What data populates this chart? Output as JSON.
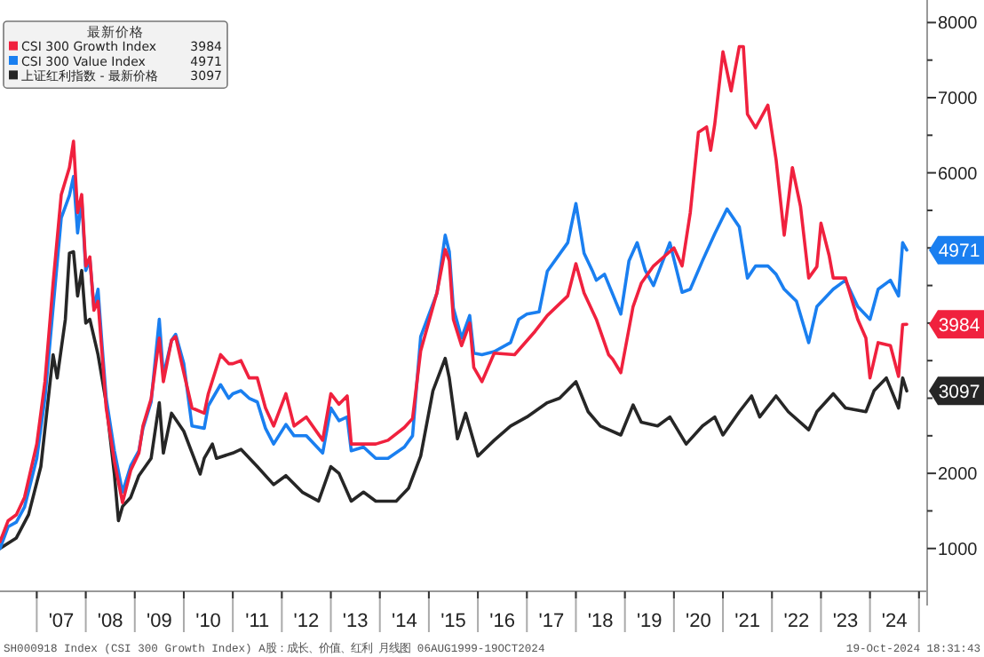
{
  "chart_data": {
    "type": "line",
    "legend_title": "最新价格",
    "legend": "top left",
    "xlim": [
      "2006-04",
      "2025-03"
    ],
    "ylim": [
      430,
      8300
    ],
    "xticks": [
      {
        "value": "2007-01",
        "label": null
      },
      {
        "value": "2007-07",
        "label": "'07"
      },
      {
        "value": "2008-01",
        "label": null
      },
      {
        "value": "2008-07",
        "label": "'08"
      },
      {
        "value": "2009-01",
        "label": null
      },
      {
        "value": "2009-07",
        "label": "'09"
      },
      {
        "value": "2010-01",
        "label": null
      },
      {
        "value": "2010-07",
        "label": "'10"
      },
      {
        "value": "2011-01",
        "label": null
      },
      {
        "value": "2011-07",
        "label": "'11"
      },
      {
        "value": "2012-01",
        "label": null
      },
      {
        "value": "2012-07",
        "label": "'12"
      },
      {
        "value": "2013-01",
        "label": null
      },
      {
        "value": "2013-07",
        "label": "'13"
      },
      {
        "value": "2014-01",
        "label": null
      },
      {
        "value": "2014-07",
        "label": "'14"
      },
      {
        "value": "2015-01",
        "label": null
      },
      {
        "value": "2015-07",
        "label": "'15"
      },
      {
        "value": "2016-01",
        "label": null
      },
      {
        "value": "2016-07",
        "label": "'16"
      },
      {
        "value": "2017-01",
        "label": null
      },
      {
        "value": "2017-07",
        "label": "'17"
      },
      {
        "value": "2018-01",
        "label": null
      },
      {
        "value": "2018-07",
        "label": "'18"
      },
      {
        "value": "2019-01",
        "label": null
      },
      {
        "value": "2019-07",
        "label": "'19"
      },
      {
        "value": "2020-01",
        "label": null
      },
      {
        "value": "2020-07",
        "label": "'20"
      },
      {
        "value": "2021-01",
        "label": null
      },
      {
        "value": "2021-07",
        "label": "'21"
      },
      {
        "value": "2022-01",
        "label": null
      },
      {
        "value": "2022-07",
        "label": "'22"
      },
      {
        "value": "2023-01",
        "label": null
      },
      {
        "value": "2023-07",
        "label": "'23"
      },
      {
        "value": "2024-01",
        "label": null
      },
      {
        "value": "2024-07",
        "label": "'24"
      },
      {
        "value": "2025-01",
        "label": null
      }
    ],
    "yticks": [
      1000,
      {
        "value": 1500,
        "label": null
      },
      2000,
      {
        "value": 2500,
        "label": null
      },
      {
        "value": 3000,
        "label": null
      },
      {
        "value": 3500,
        "label": null
      },
      {
        "value": 4000,
        "label": null
      },
      {
        "value": 4500,
        "label": null
      },
      {
        "value": 5000,
        "label": null
      },
      {
        "value": 5500,
        "label": null
      },
      6000,
      {
        "value": 6500,
        "label": null
      },
      7000,
      {
        "value": 7500,
        "label": null
      },
      8000
    ],
    "annotations": [
      "SH000918 Index (CSI 300 Growth Index) A股：成长、价值、红利   月线图 06AUG1999-19OCT2024",
      "19-Oct-2024 18:31:43"
    ],
    "series": [
      {
        "name": "CSI 300 Growth Index",
        "color": "#f0213e",
        "x": [
          "2006-04",
          "2006-06",
          "2006-08",
          "2006-10",
          "2007-01",
          "2007-03",
          "2007-05",
          "2007-07",
          "2007-09",
          "2007-10",
          "2007-11",
          "2007-12",
          "2008-01",
          "2008-02",
          "2008-03",
          "2008-04",
          "2008-05",
          "2008-06",
          "2008-08",
          "2008-10",
          "2008-12",
          "2009-02",
          "2009-03",
          "2009-05",
          "2009-07",
          "2009-08",
          "2009-10",
          "2009-11",
          "2010-01",
          "2010-03",
          "2010-06",
          "2010-07",
          "2010-10",
          "2010-12",
          "2011-01",
          "2011-03",
          "2011-05",
          "2011-07",
          "2011-09",
          "2011-11",
          "2012-02",
          "2012-04",
          "2012-07",
          "2012-11",
          "2013-01",
          "2013-03",
          "2013-05",
          "2013-06",
          "2013-09",
          "2013-12",
          "2014-03",
          "2014-07",
          "2014-09",
          "2014-11",
          "2015-03",
          "2015-05",
          "2015-06",
          "2015-07",
          "2015-09",
          "2015-11",
          "2015-12",
          "2016-02",
          "2016-05",
          "2016-10",
          "2017-03",
          "2017-06",
          "2017-11",
          "2018-01",
          "2018-03",
          "2018-06",
          "2018-09",
          "2018-10",
          "2018-12",
          "2019-03",
          "2019-05",
          "2019-08",
          "2020-01",
          "2020-03",
          "2020-05",
          "2020-07",
          "2020-09",
          "2020-10",
          "2020-11",
          "2021-01",
          "2021-03",
          "2021-05",
          "2021-06",
          "2021-07",
          "2021-09",
          "2021-12",
          "2022-02",
          "2022-04",
          "2022-06",
          "2022-08",
          "2022-10",
          "2022-12",
          "2023-01",
          "2023-03",
          "2023-04",
          "2023-07",
          "2023-10",
          "2023-12",
          "2024-01",
          "2024-03",
          "2024-06",
          "2024-08",
          "2024-09",
          "2024-10"
        ],
        "values": [
          1090,
          1370,
          1450,
          1680,
          2390,
          3220,
          4530,
          5710,
          6070,
          6420,
          5470,
          5710,
          4760,
          4880,
          4170,
          4290,
          3580,
          2870,
          2160,
          1610,
          2040,
          2270,
          2630,
          2990,
          3800,
          3220,
          3770,
          3820,
          3340,
          2870,
          2800,
          3060,
          3580,
          3460,
          3460,
          3500,
          3270,
          3270,
          2870,
          2630,
          3060,
          2630,
          2750,
          2440,
          3060,
          2920,
          3030,
          2390,
          2390,
          2390,
          2440,
          2610,
          2730,
          3630,
          4410,
          4980,
          4830,
          4050,
          3700,
          4000,
          3410,
          3220,
          3600,
          3580,
          3890,
          4100,
          4360,
          4790,
          4400,
          4050,
          3580,
          3520,
          3340,
          4220,
          4530,
          4760,
          5000,
          4760,
          5470,
          6540,
          6610,
          6300,
          6650,
          7610,
          7090,
          7680,
          7680,
          6780,
          6600,
          6900,
          6180,
          5170,
          6070,
          5550,
          4600,
          4750,
          5330,
          4900,
          4600,
          4600,
          4050,
          3800,
          3270,
          3740,
          3700,
          3290,
          3980,
          3984
        ],
        "value_labels": [
          null,
          null,
          null,
          null,
          null,
          null,
          null,
          null,
          null,
          null,
          null,
          null,
          null,
          null,
          null,
          null,
          null,
          null,
          null,
          null,
          null,
          null,
          null,
          null,
          null,
          null,
          null,
          null,
          null,
          null,
          null,
          null,
          null,
          null,
          null,
          null,
          null,
          null,
          null,
          null,
          null,
          null,
          null,
          null,
          null,
          null,
          null,
          null,
          null,
          null,
          null,
          null,
          null,
          null,
          null,
          null,
          null,
          null,
          null,
          null,
          null,
          null,
          null,
          null,
          null,
          null,
          null,
          null,
          null,
          null,
          null,
          null,
          null,
          null,
          null,
          null,
          null,
          null,
          null,
          null,
          null,
          null,
          null,
          null,
          null,
          null,
          null,
          null,
          null,
          null,
          null,
          null,
          null,
          null,
          null,
          null,
          null,
          null,
          null,
          null,
          null,
          null,
          null,
          null,
          null,
          null,
          null,
          "3984"
        ]
      },
      {
        "name": "CSI 300 Value Index",
        "color": "#1a7ff0",
        "x": [
          "2006-04",
          "2006-06",
          "2006-08",
          "2006-10",
          "2007-01",
          "2007-03",
          "2007-05",
          "2007-07",
          "2007-09",
          "2007-10",
          "2007-11",
          "2007-12",
          "2008-01",
          "2008-02",
          "2008-03",
          "2008-04",
          "2008-05",
          "2008-06",
          "2008-08",
          "2008-10",
          "2008-12",
          "2009-02",
          "2009-03",
          "2009-05",
          "2009-07",
          "2009-08",
          "2009-10",
          "2009-11",
          "2010-01",
          "2010-03",
          "2010-06",
          "2010-07",
          "2010-10",
          "2010-12",
          "2011-01",
          "2011-03",
          "2011-05",
          "2011-07",
          "2011-09",
          "2011-11",
          "2012-02",
          "2012-04",
          "2012-07",
          "2012-11",
          "2013-01",
          "2013-03",
          "2013-05",
          "2013-06",
          "2013-09",
          "2013-12",
          "2014-03",
          "2014-07",
          "2014-09",
          "2014-11",
          "2015-03",
          "2015-05",
          "2015-06",
          "2015-07",
          "2015-09",
          "2015-11",
          "2015-12",
          "2016-02",
          "2016-05",
          "2016-09",
          "2016-11",
          "2017-01",
          "2017-04",
          "2017-06",
          "2017-11",
          "2018-01",
          "2018-03",
          "2018-05",
          "2018-06",
          "2018-08",
          "2018-12",
          "2019-02",
          "2019-04",
          "2019-06",
          "2019-08",
          "2019-12",
          "2020-03",
          "2020-05",
          "2020-08",
          "2020-11",
          "2021-02",
          "2021-05",
          "2021-07",
          "2021-09",
          "2021-12",
          "2022-02",
          "2022-04",
          "2022-07",
          "2022-10",
          "2022-12",
          "2023-04",
          "2023-07",
          "2023-10",
          "2024-01",
          "2024-03",
          "2024-06",
          "2024-08",
          "2024-09",
          "2024-10"
        ],
        "values": [
          1000,
          1290,
          1350,
          1550,
          2200,
          3000,
          4200,
          5400,
          5700,
          5950,
          5200,
          5650,
          4700,
          4850,
          4200,
          4450,
          3700,
          3000,
          2300,
          1750,
          2100,
          2300,
          2600,
          2950,
          4050,
          3300,
          3770,
          3850,
          3460,
          2630,
          2600,
          2900,
          3180,
          3000,
          3060,
          3100,
          3000,
          2950,
          2600,
          2390,
          2650,
          2500,
          2500,
          2270,
          2870,
          2700,
          2750,
          2300,
          2350,
          2200,
          2200,
          2350,
          2500,
          3820,
          4400,
          5170,
          4950,
          4200,
          3800,
          4100,
          3600,
          3580,
          3620,
          3740,
          4050,
          4120,
          4150,
          4690,
          5070,
          5590,
          4930,
          4700,
          4570,
          4650,
          4120,
          4830,
          5070,
          4700,
          4500,
          5070,
          4410,
          4450,
          4830,
          5190,
          5520,
          5280,
          4600,
          4760,
          4760,
          4650,
          4450,
          4290,
          3740,
          4220,
          4450,
          4570,
          4220,
          4050,
          4450,
          4570,
          4360,
          5070,
          4971
        ],
        "value_labels": [
          null,
          null,
          null,
          null,
          null,
          null,
          null,
          null,
          null,
          null,
          null,
          null,
          null,
          null,
          null,
          null,
          null,
          null,
          null,
          null,
          null,
          null,
          null,
          null,
          null,
          null,
          null,
          null,
          null,
          null,
          null,
          null,
          null,
          null,
          null,
          null,
          null,
          null,
          null,
          null,
          null,
          null,
          null,
          null,
          null,
          null,
          null,
          null,
          null,
          null,
          null,
          null,
          null,
          null,
          null,
          null,
          null,
          null,
          null,
          null,
          null,
          null,
          null,
          null,
          null,
          null,
          null,
          null,
          null,
          null,
          null,
          null,
          null,
          null,
          null,
          null,
          null,
          null,
          null,
          null,
          null,
          null,
          null,
          null,
          null,
          null,
          null,
          null,
          null,
          null,
          null,
          null,
          null,
          null,
          null,
          null,
          null,
          null,
          null,
          null,
          null,
          null,
          "4971"
        ]
      },
      {
        "name": "上证红利指数 - 最新价格",
        "color": "#262626",
        "x": [
          "2006-04",
          "2006-08",
          "2006-11",
          "2007-02",
          "2007-05",
          "2007-06",
          "2007-08",
          "2007-09",
          "2007-10",
          "2007-11",
          "2007-12",
          "2008-01",
          "2008-02",
          "2008-04",
          "2008-06",
          "2008-08",
          "2008-09",
          "2008-10",
          "2008-12",
          "2009-02",
          "2009-05",
          "2009-07",
          "2009-08",
          "2009-10",
          "2010-01",
          "2010-05",
          "2010-06",
          "2010-08",
          "2010-09",
          "2011-01",
          "2011-03",
          "2011-07",
          "2011-11",
          "2012-02",
          "2012-06",
          "2012-10",
          "2013-01",
          "2013-03",
          "2013-06",
          "2013-09",
          "2013-12",
          "2014-05",
          "2014-08",
          "2014-11",
          "2015-02",
          "2015-05",
          "2015-06",
          "2015-08",
          "2015-10",
          "2016-01",
          "2016-05",
          "2016-09",
          "2017-01",
          "2017-06",
          "2017-09",
          "2018-01",
          "2018-04",
          "2018-07",
          "2018-12",
          "2019-03",
          "2019-05",
          "2019-09",
          "2019-12",
          "2020-04",
          "2020-08",
          "2020-11",
          "2021-01",
          "2021-05",
          "2021-08",
          "2021-10",
          "2022-02",
          "2022-05",
          "2022-10",
          "2022-12",
          "2023-04",
          "2023-07",
          "2023-12",
          "2024-02",
          "2024-05",
          "2024-08",
          "2024-09",
          "2024-10"
        ],
        "values": [
          1000,
          1140,
          1450,
          2090,
          3580,
          3270,
          4050,
          4930,
          4950,
          4360,
          4700,
          4000,
          4050,
          3580,
          2940,
          1990,
          1370,
          1560,
          1680,
          1970,
          2200,
          2940,
          2270,
          2800,
          2560,
          1990,
          2200,
          2390,
          2200,
          2270,
          2320,
          2090,
          1850,
          1970,
          1750,
          1630,
          2090,
          2000,
          1630,
          1750,
          1630,
          1630,
          1800,
          2230,
          3100,
          3530,
          3270,
          2460,
          2800,
          2230,
          2440,
          2630,
          2750,
          2940,
          3000,
          3220,
          2820,
          2630,
          2510,
          2910,
          2680,
          2630,
          2750,
          2390,
          2630,
          2750,
          2510,
          2820,
          3030,
          2750,
          3030,
          2820,
          2580,
          2820,
          3060,
          2870,
          2820,
          3100,
          3270,
          2870,
          3270,
          3097
        ],
        "value_labels": [
          null,
          null,
          null,
          null,
          null,
          null,
          null,
          null,
          null,
          null,
          null,
          null,
          null,
          null,
          null,
          null,
          null,
          null,
          null,
          null,
          null,
          null,
          null,
          null,
          null,
          null,
          null,
          null,
          null,
          null,
          null,
          null,
          null,
          null,
          null,
          null,
          null,
          null,
          null,
          null,
          null,
          null,
          null,
          null,
          null,
          null,
          null,
          null,
          null,
          null,
          null,
          null,
          null,
          null,
          null,
          null,
          null,
          null,
          null,
          null,
          null,
          null,
          null,
          null,
          null,
          null,
          null,
          null,
          null,
          null,
          null,
          null,
          null,
          null,
          null,
          null,
          null,
          null,
          null,
          null,
          null,
          "3097"
        ]
      }
    ]
  }
}
